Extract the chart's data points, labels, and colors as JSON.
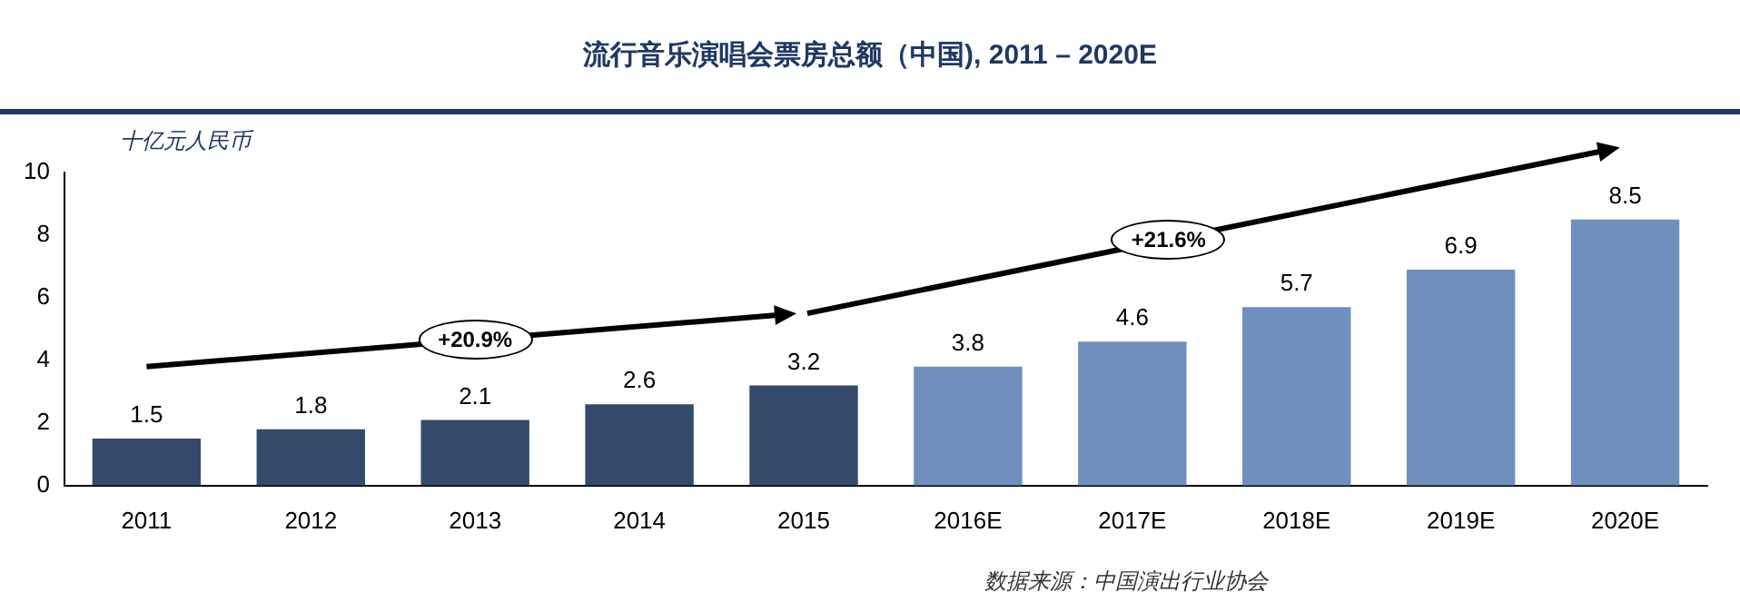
{
  "chart_data": {
    "type": "bar",
    "title": "流行音乐演唱会票房总额（中国), 2011 – 2020E",
    "ylabel": "十亿元人民币",
    "categories": [
      "2011",
      "2012",
      "2013",
      "2014",
      "2015",
      "2016E",
      "2017E",
      "2018E",
      "2019E",
      "2020E"
    ],
    "values": [
      1.5,
      1.8,
      2.1,
      2.6,
      3.2,
      3.8,
      4.6,
      5.7,
      6.9,
      8.5
    ],
    "colors": [
      "#344a6b",
      "#344a6b",
      "#344a6b",
      "#344a6b",
      "#344a6b",
      "#6f8fbd",
      "#6f8fbd",
      "#6f8fbd",
      "#6f8fbd",
      "#6f8fbd"
    ],
    "ylim": [
      0,
      10
    ],
    "yticks": [
      0,
      2,
      4,
      6,
      8,
      10
    ],
    "grid": false,
    "legend": false,
    "data_labels": true,
    "annotations": [
      "+20.9%",
      "+21.6%",
      "数据来源：中国演出行业协会"
    ]
  }
}
